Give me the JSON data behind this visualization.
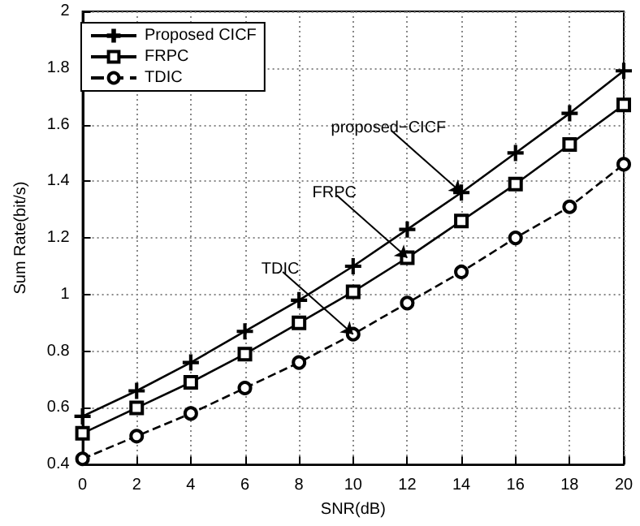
{
  "chart_data": {
    "type": "line",
    "xlabel": "SNR(dB)",
    "ylabel": "Sum Rate(bit/s)",
    "x": [
      0,
      2,
      4,
      6,
      8,
      10,
      12,
      14,
      16,
      18,
      20
    ],
    "series": [
      {
        "name": "Proposed CICF",
        "color": "#000000",
        "marker": "cross",
        "line_style": "solid",
        "values": [
          0.57,
          0.66,
          0.76,
          0.87,
          0.98,
          1.1,
          1.23,
          1.36,
          1.5,
          1.64,
          1.79
        ]
      },
      {
        "name": "FRPC",
        "color": "#000000",
        "marker": "square",
        "line_style": "solid",
        "values": [
          0.51,
          0.6,
          0.69,
          0.79,
          0.9,
          1.01,
          1.13,
          1.26,
          1.39,
          1.53,
          1.67
        ]
      },
      {
        "name": "TDIC",
        "color": "#000000",
        "marker": "circle",
        "line_style": "dashed",
        "values": [
          0.42,
          0.5,
          0.58,
          0.67,
          0.76,
          0.86,
          0.97,
          1.08,
          1.2,
          1.31,
          1.46
        ]
      }
    ],
    "xlim": [
      0,
      20
    ],
    "xticks": [
      0,
      2,
      4,
      6,
      8,
      10,
      12,
      14,
      16,
      18,
      20
    ],
    "ylim": [
      0.4,
      2
    ],
    "yticks": [
      0.4,
      0.6,
      0.8,
      1,
      1.2,
      1.4,
      1.6,
      1.8,
      2
    ],
    "grid": true,
    "legend": "top left",
    "annotations": [
      {
        "text": "proposed−CICF",
        "x": 14,
        "y": 1.36
      },
      {
        "text": "FRPC",
        "x": 12,
        "y": 1.13
      },
      {
        "text": "TDIC",
        "x": 10,
        "y": 0.86
      }
    ]
  }
}
